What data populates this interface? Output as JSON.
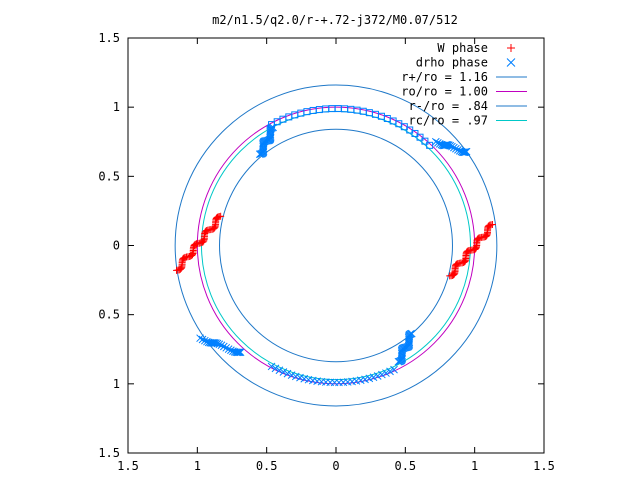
{
  "chart_data": {
    "type": "scatter",
    "title": "m2/n1.5/q2.0/r-+.72-j372/M0.07/512",
    "xlim": [
      -1.5,
      1.5
    ],
    "ylim": [
      -1.5,
      1.5
    ],
    "xticks": [
      -1.5,
      -1,
      -0.5,
      0,
      0.5,
      1,
      1.5
    ],
    "yticks": [
      -1.5,
      -1,
      -0.5,
      0,
      0.5,
      1,
      1.5
    ],
    "xtick_labels": [
      "1.5",
      "1",
      "0.5",
      "0",
      "0.5",
      "1",
      "1.5"
    ],
    "ytick_labels": [
      "1.5",
      "1",
      "0.5",
      "0",
      "0.5",
      "1",
      "1.5"
    ],
    "grid": false,
    "legend_position": "top-right",
    "legend": [
      {
        "label": "W phase",
        "color": "#ff0000",
        "marker": "plus"
      },
      {
        "label": "drho phase",
        "color": "#0080ff",
        "marker": "cross"
      },
      {
        "label": "r+/ro = 1.16",
        "color": "#1f78c8",
        "marker": "line"
      },
      {
        "label": "ro/ro = 1.00",
        "color": "#c000c0",
        "marker": "line"
      },
      {
        "label": "r-/ro = .84",
        "color": "#1f78c8",
        "marker": "line"
      },
      {
        "label": "rc/ro = .97",
        "color": "#00c8c8",
        "marker": "line"
      }
    ],
    "circles": [
      {
        "r": 1.16,
        "color": "#1f78c8"
      },
      {
        "r": 1.0,
        "color": "#c000c0"
      },
      {
        "r": 0.84,
        "color": "#1f78c8"
      },
      {
        "r": 0.97,
        "color": "#00c8c8"
      }
    ],
    "series": [
      {
        "name": "W phase",
        "color": "#ff0000",
        "segments": [
          {
            "from": [
              -1.15,
              -0.18
            ],
            "to": [
              -0.83,
              0.21
            ],
            "count": 60
          },
          {
            "from": [
              0.82,
              -0.22
            ],
            "to": [
              1.13,
              0.15
            ],
            "count": 60
          }
        ]
      },
      {
        "name": "drho phase",
        "color": "#0080ff",
        "arcs": [
          {
            "r": 0.99,
            "from_deg": 47,
            "to_deg": 118,
            "marker": "square",
            "count": 28
          },
          {
            "r": 0.99,
            "from_deg": 242,
            "to_deg": 295,
            "marker": "cross",
            "count": 30
          }
        ],
        "segments": [
          {
            "from": [
              -0.55,
              0.66
            ],
            "to": [
              -0.45,
              0.85
            ],
            "count": 30
          },
          {
            "from": [
              0.45,
              -0.84
            ],
            "to": [
              0.55,
              -0.64
            ],
            "count": 30
          },
          {
            "from": [
              0.72,
              0.75
            ],
            "to": [
              0.95,
              0.67
            ],
            "count": 25
          },
          {
            "from": [
              -0.98,
              -0.67
            ],
            "to": [
              -0.68,
              -0.78
            ],
            "count": 25
          }
        ]
      }
    ]
  }
}
